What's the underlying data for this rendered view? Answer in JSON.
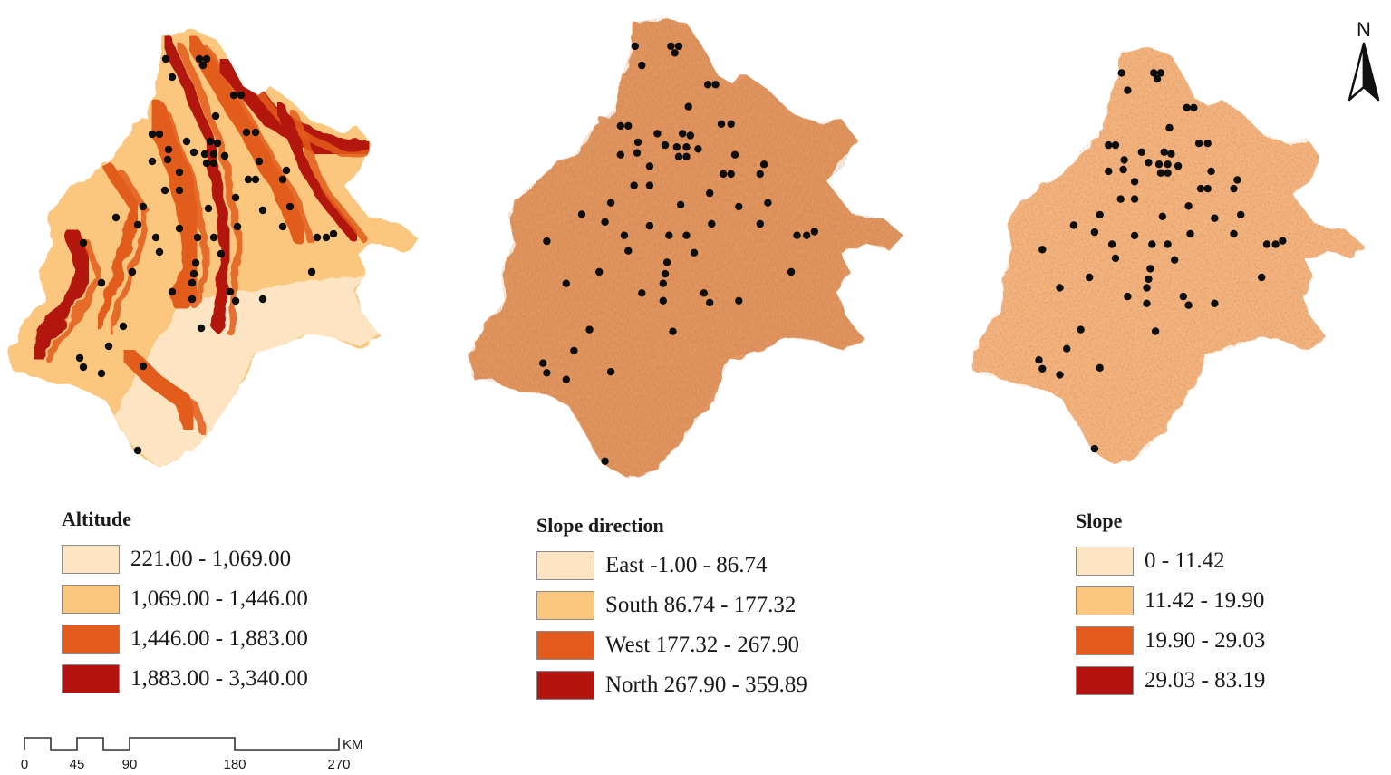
{
  "maps": [
    {
      "id": "altitude",
      "colors": [
        "#fde5c3",
        "#fbc77e",
        "#e25b1d",
        "#b3140f"
      ]
    },
    {
      "id": "slope-direction",
      "colors": [
        "#f7caa0",
        "#e49764",
        "#cf6b3c",
        "#a9481e"
      ]
    },
    {
      "id": "slope",
      "colors": [
        "#fbe2c2",
        "#f1b482",
        "#e07d46",
        "#b8401a"
      ]
    }
  ],
  "legends": [
    {
      "title": "Altitude",
      "items": [
        {
          "label": "221.00 - 1,069.00",
          "color": "#fde5c3"
        },
        {
          "label": "1,069.00 - 1,446.00",
          "color": "#fbc77e"
        },
        {
          "label": "1,446.00 - 1,883.00",
          "color": "#e25b1d"
        },
        {
          "label": "1,883.00 - 3,340.00",
          "color": "#b3140f"
        }
      ]
    },
    {
      "title": "Slope direction",
      "items": [
        {
          "label": "East -1.00 - 86.74",
          "color": "#fde5c3"
        },
        {
          "label": "South 86.74 - 177.32",
          "color": "#fbc77e"
        },
        {
          "label": "West 177.32 - 267.90",
          "color": "#e25b1d"
        },
        {
          "label": "North 267.90 - 359.89",
          "color": "#b3140f"
        }
      ]
    },
    {
      "title": "Slope",
      "items": [
        {
          "label": "0 - 11.42",
          "color": "#fde5c3"
        },
        {
          "label": "11.42 - 19.90",
          "color": "#fbc77e"
        },
        {
          "label": "19.90 - 29.03",
          "color": "#e25b1d"
        },
        {
          "label": "29.03 - 83.19",
          "color": "#b3140f"
        }
      ]
    }
  ],
  "scale_bar": {
    "ticks": [
      "0",
      "45",
      "90",
      "180",
      "270"
    ],
    "unit": "KM"
  },
  "north_arrow": {
    "label": "N",
    "icon": "north-arrow-icon"
  }
}
